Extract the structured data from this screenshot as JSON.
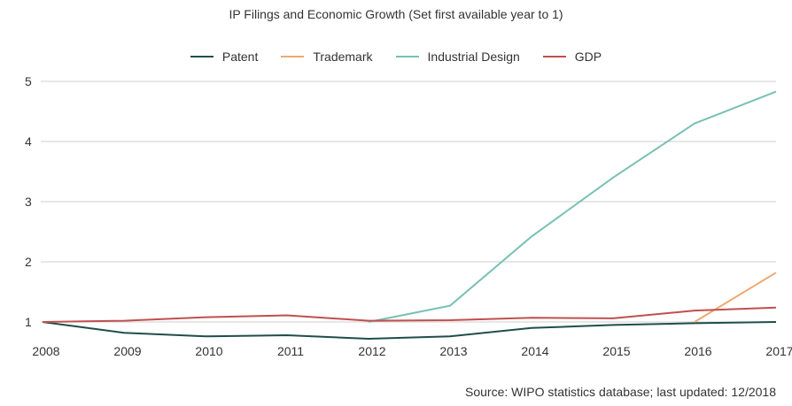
{
  "chart_data": {
    "type": "line",
    "title": "IP Filings and Economic Growth (Set first available year to 1)",
    "source": "Source: WIPO statistics database; last updated: 12/2018",
    "x": [
      "2008",
      "2009",
      "2010",
      "2011",
      "2012",
      "2013",
      "2014",
      "2015",
      "2016",
      "2017"
    ],
    "ylim": [
      1,
      5
    ],
    "yticks": [
      "1",
      "2",
      "3",
      "4",
      "5"
    ],
    "grid": true,
    "legend_position": "top",
    "series": [
      {
        "name": "Patent",
        "color": "#1f4e4a",
        "values": [
          1.0,
          0.82,
          0.76,
          0.78,
          0.72,
          0.76,
          0.9,
          0.95,
          0.98,
          1.0
        ]
      },
      {
        "name": "Trademark",
        "color": "#f0a870",
        "values": [
          null,
          null,
          null,
          null,
          null,
          null,
          null,
          null,
          1.0,
          1.82
        ]
      },
      {
        "name": "Industrial Design",
        "color": "#78c0b4",
        "values": [
          null,
          null,
          null,
          null,
          1.0,
          1.27,
          2.42,
          3.4,
          4.3,
          4.83
        ]
      },
      {
        "name": "GDP",
        "color": "#c0504d",
        "values": [
          1.0,
          1.02,
          1.08,
          1.11,
          1.02,
          1.03,
          1.07,
          1.06,
          1.19,
          1.24
        ]
      }
    ]
  }
}
